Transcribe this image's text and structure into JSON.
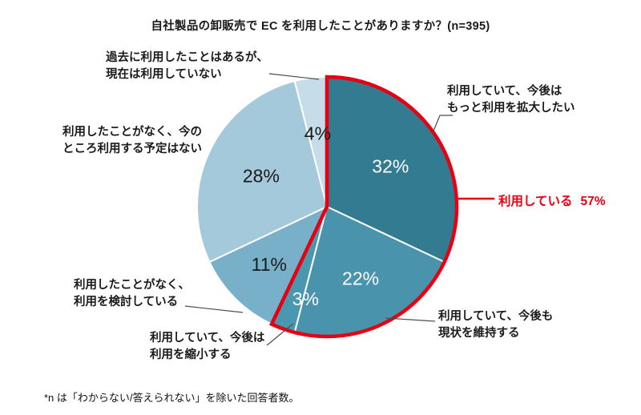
{
  "title": "自社製品の卸販売で EC を利用したことがありますか？(n=395)",
  "footnote": "*n は「わからない/答えられない」を除いた回答者数。",
  "red_label": {
    "text": "利用している",
    "value": "57%",
    "color": "#e60012"
  },
  "callouts": [
    {
      "lines": [
        "過去に利用したことはあるが、",
        "現在は利用していない"
      ]
    },
    {
      "lines": [
        "利用したことがなく、今の",
        "ところ利用する予定はない"
      ]
    },
    {
      "lines": [
        "利用したことがなく、",
        "利用を検討している"
      ]
    },
    {
      "lines": [
        "利用していて、今後は",
        "利用を縮小する"
      ]
    },
    {
      "lines": [
        "利用していて、今後は",
        "もっと利用を拡大したい"
      ]
    },
    {
      "lines": [
        "利用していて、今後も",
        "現状を維持する"
      ]
    }
  ],
  "chart_data": {
    "type": "pie",
    "title": "自社製品の卸販売で EC を利用したことがありますか？(n=395)",
    "n": 395,
    "unit": "%",
    "start_angle_deg": 0,
    "direction": "clockwise",
    "legend_position": "callouts",
    "slices": [
      {
        "label": "利用していて、今後はもっと利用を拡大したい",
        "value": 32,
        "color": "#337b91",
        "text_color": "#ffffff"
      },
      {
        "label": "利用していて、今後も現状を維持する",
        "value": 22,
        "color": "#4a93ad",
        "text_color": "#ffffff"
      },
      {
        "label": "利用していて、今後は利用を縮小する",
        "value": 3,
        "color": "#4a98b0",
        "text_color": "#ffffff"
      },
      {
        "label": "利用したことがなく、利用を検討している",
        "value": 11,
        "color": "#78b0ca",
        "text_color": "#1a1a1a"
      },
      {
        "label": "利用したことがなく、今のところ利用する予定はない",
        "value": 28,
        "color": "#a4c9db",
        "text_color": "#1a1a1a"
      },
      {
        "label": "過去に利用したことはあるが、現在は利用していない",
        "value": 4,
        "color": "#c6dde9",
        "text_color": "#1a1a1a"
      }
    ],
    "group_annotation": {
      "label": "利用している",
      "value": 57,
      "covers_slices": [
        0,
        1,
        2
      ],
      "color": "#e60012"
    }
  }
}
